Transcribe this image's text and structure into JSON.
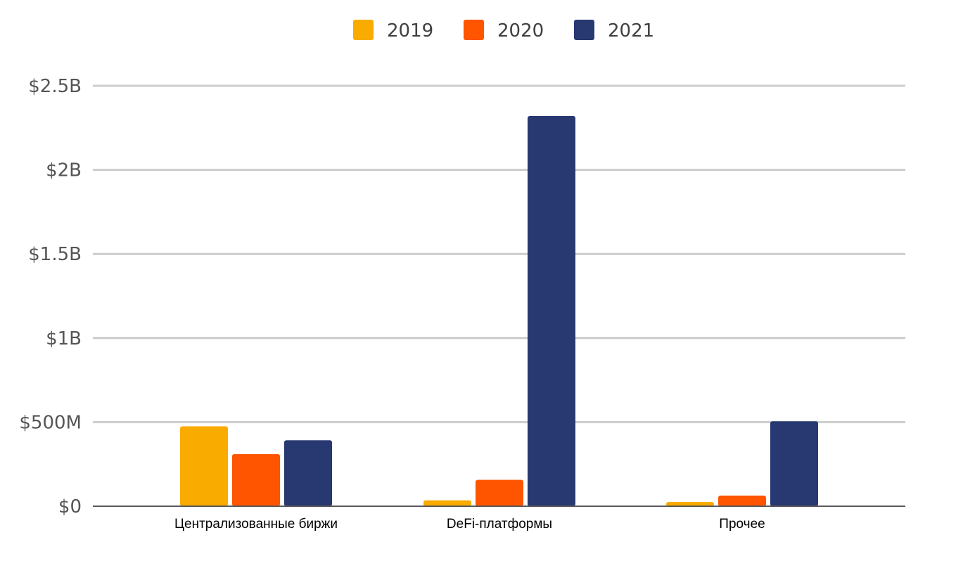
{
  "chart_data": {
    "type": "bar",
    "title": "",
    "xlabel": "",
    "ylabel": "",
    "categories": [
      "Централизованные биржи",
      "DeFi-платформы",
      "Прочее"
    ],
    "series": [
      {
        "name": "2019",
        "color": "#F9AB00",
        "values": [
          475000000,
          35000000,
          25000000
        ]
      },
      {
        "name": "2020",
        "color": "#FF5400",
        "values": [
          310000000,
          157000000,
          63000000
        ]
      },
      {
        "name": "2021",
        "color": "#283870",
        "values": [
          392000000,
          2320000000,
          505000000
        ]
      }
    ],
    "ylim": [
      0,
      2500000000
    ],
    "yticks": [
      {
        "value": 0,
        "label": "$0"
      },
      {
        "value": 500000000,
        "label": "$500M"
      },
      {
        "value": 1000000000,
        "label": "$1B"
      },
      {
        "value": 1500000000,
        "label": "$1.5B"
      },
      {
        "value": 2000000000,
        "label": "$2B"
      },
      {
        "value": 2500000000,
        "label": "$2.5B"
      }
    ],
    "grid": true,
    "legend_position": "top"
  }
}
